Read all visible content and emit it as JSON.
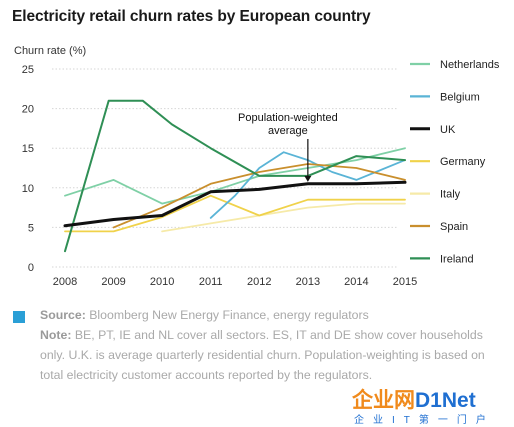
{
  "title": "Electricity retail churn rates by European country",
  "chart_data": {
    "type": "line",
    "title": "Electricity retail churn rates by European country",
    "ylabel": "Churn rate (%)",
    "xlabel": "",
    "x": [
      2008,
      2009,
      2010,
      2011,
      2012,
      2013,
      2014,
      2015
    ],
    "xticks": [
      "2008",
      "2009",
      "2010",
      "2011",
      "2012",
      "2013",
      "2014",
      "2015"
    ],
    "ylim": [
      0,
      25
    ],
    "yticks": [
      0,
      5,
      10,
      15,
      20,
      25
    ],
    "grid": true,
    "legend_position": "right",
    "series": [
      {
        "name": "Netherlands",
        "color": "#7fd0a6",
        "width": 1.8,
        "points": [
          [
            2008,
            9
          ],
          [
            2009,
            11
          ],
          [
            2009.5,
            9.5
          ],
          [
            2010,
            8
          ],
          [
            2011,
            9.5
          ],
          [
            2012,
            11.5
          ],
          [
            2013,
            12.5
          ],
          [
            2014,
            13.5
          ],
          [
            2015,
            15
          ]
        ]
      },
      {
        "name": "Belgium",
        "color": "#5ab4d6",
        "width": 1.8,
        "points": [
          [
            2011,
            6.2
          ],
          [
            2011.5,
            9
          ],
          [
            2012,
            12.5
          ],
          [
            2012.5,
            14.5
          ],
          [
            2013,
            13.5
          ],
          [
            2013.5,
            12
          ],
          [
            2014,
            11
          ],
          [
            2015,
            13.5
          ]
        ]
      },
      {
        "name": "UK",
        "color": "#111111",
        "width": 3,
        "points": [
          [
            2008,
            5.2
          ],
          [
            2009,
            6
          ],
          [
            2010,
            6.5
          ],
          [
            2011,
            9.5
          ],
          [
            2012,
            9.8
          ],
          [
            2013,
            10.5
          ],
          [
            2014,
            10.5
          ],
          [
            2015,
            10.7
          ]
        ]
      },
      {
        "name": "Germany",
        "color": "#f0d24a",
        "width": 1.8,
        "points": [
          [
            2008,
            4.5
          ],
          [
            2009,
            4.5
          ],
          [
            2010,
            6.3
          ],
          [
            2011,
            9
          ],
          [
            2012,
            6.5
          ],
          [
            2013,
            8.5
          ],
          [
            2014,
            8.5
          ],
          [
            2015,
            8.5
          ]
        ]
      },
      {
        "name": "Italy",
        "color": "#f6eaa8",
        "width": 1.8,
        "points": [
          [
            2010,
            4.5
          ],
          [
            2011,
            5.5
          ],
          [
            2012,
            6.5
          ],
          [
            2013,
            7.5
          ],
          [
            2014,
            8
          ],
          [
            2015,
            8
          ]
        ]
      },
      {
        "name": "Spain",
        "color": "#c98f2d",
        "width": 1.8,
        "points": [
          [
            2009,
            5
          ],
          [
            2010,
            7.5
          ],
          [
            2011,
            10.5
          ],
          [
            2012,
            12
          ],
          [
            2013,
            13
          ],
          [
            2014,
            12.5
          ],
          [
            2015,
            11
          ]
        ]
      },
      {
        "name": "Ireland",
        "color": "#2f8f55",
        "width": 2,
        "points": [
          [
            2008,
            2
          ],
          [
            2008.9,
            21
          ],
          [
            2009.6,
            21
          ],
          [
            2010.2,
            18
          ],
          [
            2011,
            15
          ],
          [
            2012,
            11.5
          ],
          [
            2013,
            11.5
          ],
          [
            2014,
            14
          ],
          [
            2015,
            13.5
          ]
        ]
      }
    ],
    "annotation": {
      "text_lines": [
        "Population-weighted",
        "average"
      ],
      "target": [
        2013,
        10.5
      ]
    }
  },
  "notes": {
    "source_label": "Source:",
    "source_text": " Bloomberg New Energy Finance, energy regulators",
    "note_label": "Note:",
    "note_text": " BE, PT, IE and NL cover all sectors. ES, IT and DE show cover households only. U.K. is average quarterly residential churn. Population-weighting is based on total electricity customer accounts reported by the regulators.",
    "source_color": "#2a9fd6"
  },
  "watermark": {
    "main_a": "企业网",
    "main_b": "D1Net",
    "sub": "企业IT第一门户"
  }
}
